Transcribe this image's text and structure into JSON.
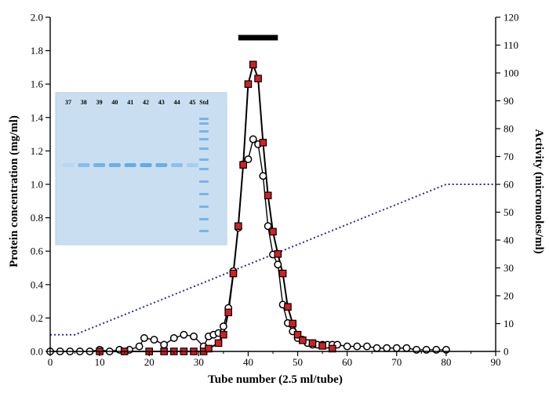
{
  "chart_data": {
    "type": "line",
    "xlabel": "Tube number (2.5 ml/tube)",
    "ylabel": "Protein concentration (mg/ml)",
    "y2label": "Activity (micromoles/ml)",
    "xlim": [
      0,
      90
    ],
    "ylim": [
      0,
      2.0
    ],
    "y2lim": [
      0,
      120
    ],
    "x_ticks": [
      "0",
      "10",
      "20",
      "30",
      "40",
      "50",
      "60",
      "70",
      "80",
      "90"
    ],
    "y_ticks": [
      "0.0",
      "0.2",
      "0.4",
      "0.6",
      "0.8",
      "1.0",
      "1.2",
      "1.4",
      "1.6",
      "1.8",
      "2.0"
    ],
    "y2_ticks": [
      "0",
      "10",
      "20",
      "30",
      "40",
      "50",
      "60",
      "70",
      "80",
      "90",
      "100",
      "110",
      "120"
    ],
    "grid": false,
    "series": [
      {
        "marker": "open-circle",
        "axis": "left",
        "color": "#000000",
        "x": [
          0,
          2,
          4,
          6,
          8,
          10,
          12,
          14,
          16,
          18,
          19,
          21,
          23,
          25,
          27,
          29,
          31,
          32,
          33,
          34,
          35,
          36,
          37,
          38,
          39,
          40,
          41,
          42,
          43,
          44,
          45,
          46,
          47,
          48,
          49,
          50,
          51,
          52,
          53,
          54,
          55,
          56,
          57,
          58,
          60,
          62,
          64,
          66,
          68,
          70,
          72,
          74,
          76,
          78,
          80
        ],
        "values": [
          0.0,
          0.0,
          0.0,
          0.0,
          0.0,
          0.01,
          0.0,
          0.01,
          0.01,
          0.03,
          0.08,
          0.07,
          0.04,
          0.08,
          0.1,
          0.09,
          0.03,
          0.09,
          0.1,
          0.11,
          0.15,
          0.26,
          0.48,
          0.74,
          1.12,
          1.15,
          1.27,
          1.24,
          1.05,
          0.75,
          0.58,
          0.52,
          0.28,
          0.17,
          0.12,
          0.08,
          0.07,
          0.05,
          0.04,
          0.04,
          0.04,
          0.04,
          0.04,
          0.04,
          0.03,
          0.03,
          0.03,
          0.02,
          0.02,
          0.02,
          0.02,
          0.01,
          0.01,
          0.01,
          0.01
        ]
      },
      {
        "marker": "filled-square",
        "axis": "right",
        "color": "#d42020",
        "x": [
          10,
          15,
          20,
          23,
          25,
          27,
          29,
          31,
          32,
          34,
          35,
          36,
          37,
          38,
          39,
          40,
          41,
          42,
          43,
          44,
          45,
          46,
          47,
          48,
          49,
          50,
          51,
          53,
          55,
          57
        ],
        "values": [
          0,
          0,
          0,
          0,
          0,
          0,
          0,
          0,
          1,
          3,
          6,
          14,
          28,
          45,
          67,
          96,
          103,
          98,
          75,
          56,
          43,
          35,
          28,
          16,
          10,
          6,
          4,
          3,
          2,
          1
        ]
      },
      {
        "line": "dotted",
        "axis": "left",
        "color": "#2a2aa0",
        "x": [
          0,
          5,
          80,
          90
        ],
        "values": [
          0.1,
          0.1,
          1.0,
          1.0
        ]
      }
    ],
    "pooled_fractions_bar": [
      38,
      46
    ],
    "gel_inset": {
      "lanes": [
        "37",
        "38",
        "39",
        "40",
        "41",
        "42",
        "43",
        "44",
        "45",
        "Std"
      ],
      "band_intensity": [
        0.15,
        0.6,
        0.8,
        0.85,
        0.9,
        0.95,
        0.85,
        0.55,
        0.3
      ]
    }
  }
}
